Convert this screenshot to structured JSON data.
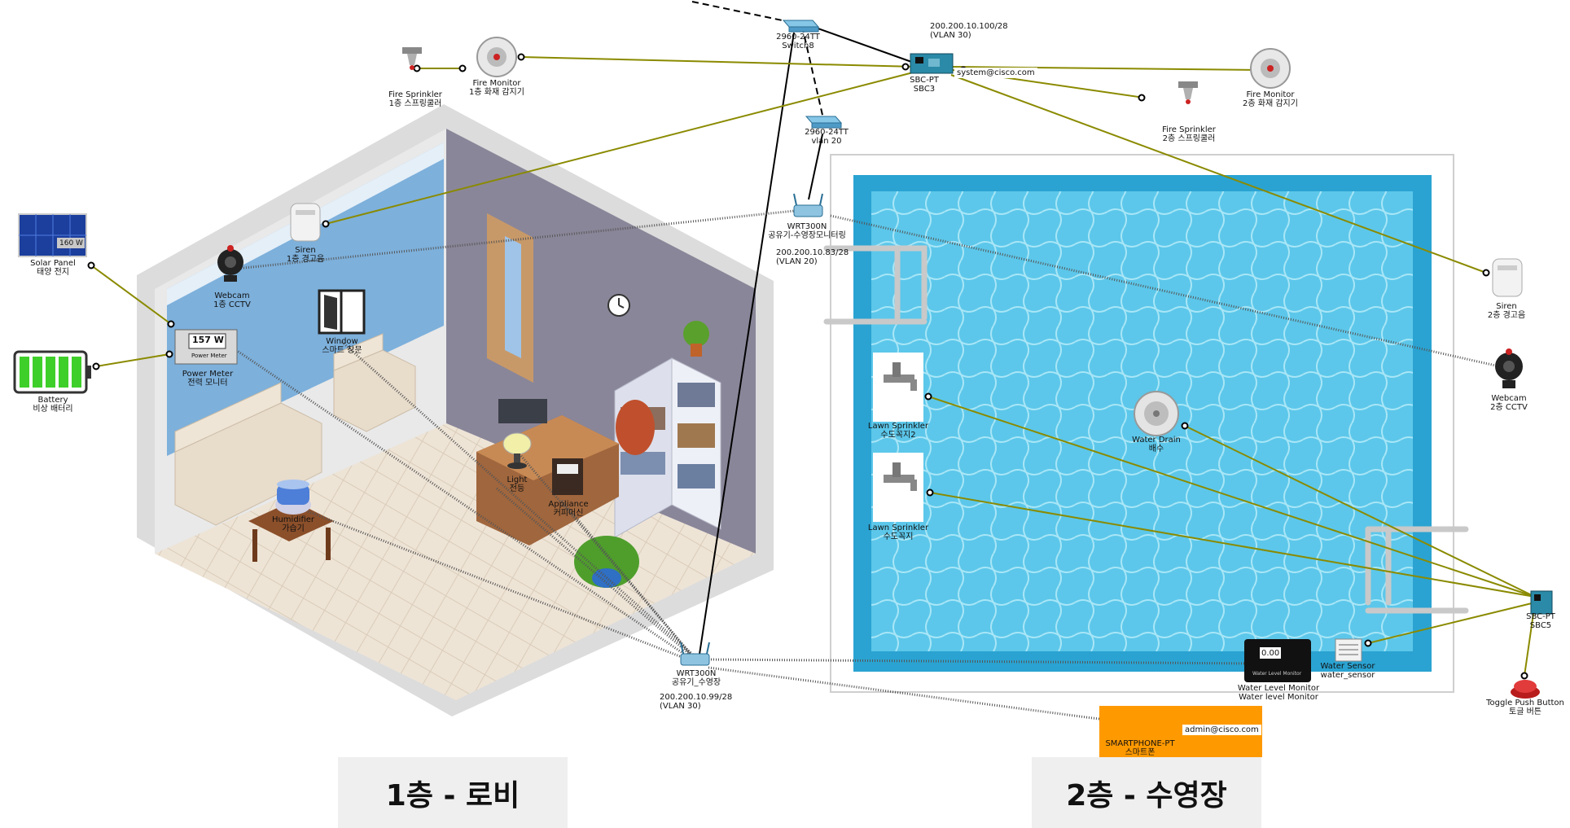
{
  "labels": {
    "switch8": [
      "2960-24TT",
      "Switch8"
    ],
    "sbc3": [
      "SBC-PT",
      "SBC3"
    ],
    "sbc3_ip": [
      "200.200.10.100/28",
      "(VLAN 30)"
    ],
    "sbc3_email": "system@cisco.com",
    "fire_sprinkler_1": [
      "Fire Sprinkler",
      "1층 스프링쿨러"
    ],
    "fire_monitor_1": [
      "Fire Monitor",
      "1층 화재 감지기"
    ],
    "fire_monitor_2": [
      "Fire Monitor",
      "2층 화재 감지기"
    ],
    "fire_sprinkler_2": [
      "Fire Sprinkler",
      "2층 스프링쿨러"
    ],
    "switch_vlan20": [
      "2960-24TT",
      "vlan 20"
    ],
    "wrt_pool": [
      "WRT300N",
      "공유기-수영장모니터링"
    ],
    "wrt_pool_ip": [
      "200.200.10.83/28",
      "(VLAN 20)"
    ],
    "solar": [
      "Solar Panel",
      "태양 전지"
    ],
    "battery": [
      "Battery",
      "비상 배터리"
    ],
    "siren_1": [
      "Siren",
      "1층 경고음"
    ],
    "webcam_1": [
      "Webcam",
      "1층 CCTV"
    ],
    "power_meter": [
      "Power Meter",
      "전력 모니터"
    ],
    "window": [
      "Window",
      "스마트 창문"
    ],
    "light": [
      "Light",
      "전등"
    ],
    "appliance": [
      "Appliance",
      "커피머신"
    ],
    "humidifier": [
      "Humidifier",
      "가습기"
    ],
    "wrt_lobby": [
      "WRT300N",
      "공유기_수영장"
    ],
    "wrt_lobby_ip": [
      "200.200.10.99/28",
      "(VLAN 30)"
    ],
    "lawn_1": [
      "Lawn Sprinkler",
      "수도꼭지2"
    ],
    "lawn_2": [
      "Lawn Sprinkler",
      "수도꼭지"
    ],
    "water_drain": [
      "Water Drain",
      "배수"
    ],
    "siren_2": [
      "Siren",
      "2층 경고음"
    ],
    "webcam_2": [
      "Webcam",
      "2층 CCTV"
    ],
    "sbc5": [
      "SBC-PT",
      "SBC5"
    ],
    "water_sensor": [
      "Water Sensor",
      "water_sensor"
    ],
    "water_level": [
      "Water Level Monitor",
      "Water level Monitor"
    ],
    "toggle": [
      "Toggle Push Button",
      "토글 버튼"
    ],
    "smartphone": [
      "SMARTPHONE-PT",
      "스마트폰"
    ],
    "smartphone_email": "admin@cisco.com"
  },
  "readouts": {
    "solar_w": "160 W",
    "power_meter_w": "157 W",
    "power_meter_caption": "Power Meter",
    "water_level_value": "0.00",
    "water_level_caption": "Water Level Monitor"
  },
  "floors": {
    "floor1": "1층 - 로비",
    "floor2": "2층 - 수영장"
  },
  "colors": {
    "link_olive": "#8a8a00",
    "link_black": "#000000",
    "pool_water": "#4fc3e8",
    "pool_deep": "#2aa3d2",
    "phone_bg": "#ff9900",
    "title_bg": "#efefef"
  }
}
